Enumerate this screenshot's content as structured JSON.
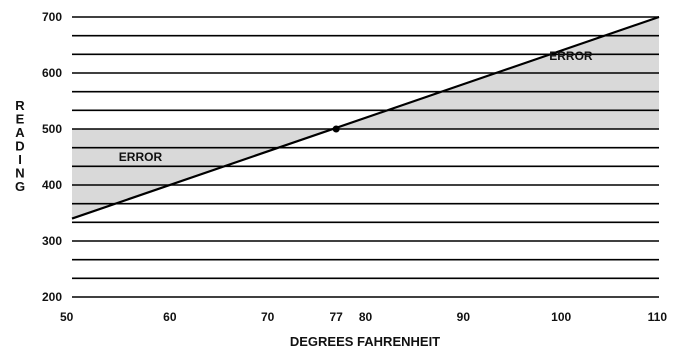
{
  "chart_data": {
    "type": "line",
    "xlabel": "DEGREES FAHRENHEIT",
    "ylabel": "READING",
    "xlim": [
      50,
      110
    ],
    "ylim": [
      200,
      700
    ],
    "x_ticks": [
      50,
      60,
      70,
      77,
      80,
      90,
      100,
      110
    ],
    "y_ticks": [
      200,
      300,
      400,
      500,
      600,
      700
    ],
    "grid": "horizontal",
    "grid_step": 33.333,
    "series": [
      {
        "x": [
          50,
          110
        ],
        "y": [
          340,
          700
        ]
      }
    ],
    "reference_point": {
      "x": 77,
      "y": 500
    },
    "reference_level": 500,
    "annotations": [
      {
        "text": "ERROR",
        "x": 57,
        "y": 450
      },
      {
        "text": "ERROR",
        "x": 101,
        "y": 630
      }
    ],
    "colors": {
      "fill": "#d9d9d9",
      "line": "#000000"
    }
  }
}
